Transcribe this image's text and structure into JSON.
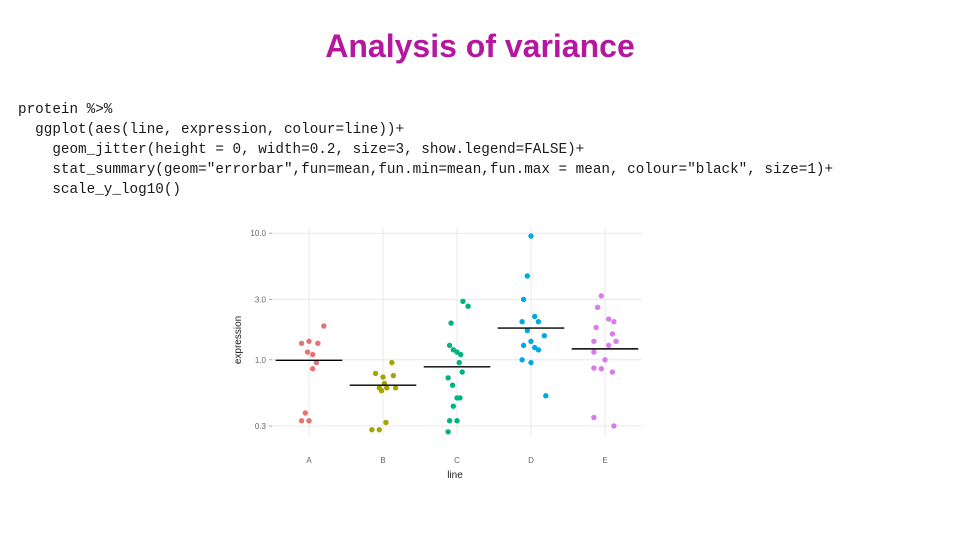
{
  "slide": {
    "title": "Analysis of variance"
  },
  "code": {
    "lines": [
      "protein %>%",
      "  ggplot(aes(line, expression, colour=line))+",
      "    geom_jitter(height = 0, width=0.2, size=3, show.legend=FALSE)+",
      "    stat_summary(geom=\"errorbar\",fun=mean,fun.min=mean,fun.max = mean, colour=\"black\", size=1)+",
      "    scale_y_log10()"
    ]
  },
  "chart_data": {
    "type": "scatter",
    "xlabel": "line",
    "ylabel": "expression",
    "y_scale": "log10",
    "ylim": [
      0.25,
      11
    ],
    "yticks": [
      10.0,
      3.0,
      1.0,
      0.3
    ],
    "ytick_labels": [
      "10.0",
      "3.0",
      "1.0",
      "0.3"
    ],
    "categories": [
      "A",
      "B",
      "C",
      "D",
      "E"
    ],
    "grid": true,
    "legend": "none",
    "colors": {
      "A": "#e57373",
      "B": "#a3a500",
      "C": "#00b383",
      "D": "#00a9e0",
      "E": "#d77ce8",
      "mean_bar": "#000000",
      "grid": "#e8e8e8"
    },
    "series": [
      {
        "category": "A",
        "points": [
          [
            -0.1,
            1.35
          ],
          [
            0.0,
            1.4
          ],
          [
            0.12,
            1.35
          ],
          [
            -0.02,
            1.15
          ],
          [
            0.05,
            1.1
          ],
          [
            0.1,
            0.95
          ],
          [
            0.05,
            0.85
          ],
          [
            0.2,
            1.85
          ],
          [
            -0.05,
            0.38
          ],
          [
            0.0,
            0.33
          ],
          [
            -0.1,
            0.33
          ]
        ],
        "mean": 0.99
      },
      {
        "category": "B",
        "points": [
          [
            -0.15,
            0.28
          ],
          [
            0.12,
            0.95
          ],
          [
            -0.1,
            0.78
          ],
          [
            0.0,
            0.73
          ],
          [
            0.14,
            0.75
          ],
          [
            0.02,
            0.65
          ],
          [
            -0.05,
            0.6
          ],
          [
            0.05,
            0.6
          ],
          [
            -0.02,
            0.57
          ],
          [
            0.17,
            0.6
          ],
          [
            0.04,
            0.32
          ],
          [
            -0.05,
            0.28
          ]
        ],
        "mean": 0.63
      },
      {
        "category": "C",
        "points": [
          [
            0.08,
            2.9
          ],
          [
            0.15,
            2.65
          ],
          [
            -0.08,
            1.95
          ],
          [
            -0.1,
            1.3
          ],
          [
            -0.05,
            1.2
          ],
          [
            0.0,
            1.15
          ],
          [
            0.05,
            1.1
          ],
          [
            0.03,
            0.95
          ],
          [
            0.07,
            0.8
          ],
          [
            -0.12,
            0.72
          ],
          [
            -0.06,
            0.63
          ],
          [
            0.0,
            0.5
          ],
          [
            0.04,
            0.5
          ],
          [
            -0.05,
            0.43
          ],
          [
            0.0,
            0.33
          ],
          [
            -0.1,
            0.33
          ],
          [
            -0.12,
            0.27
          ]
        ],
        "mean": 0.88
      },
      {
        "category": "D",
        "points": [
          [
            0.0,
            9.5
          ],
          [
            -0.05,
            4.6
          ],
          [
            -0.1,
            3.0
          ],
          [
            -0.12,
            2.0
          ],
          [
            0.05,
            2.2
          ],
          [
            0.1,
            2.0
          ],
          [
            0.18,
            1.55
          ],
          [
            -0.05,
            1.7
          ],
          [
            0.0,
            1.4
          ],
          [
            -0.1,
            1.3
          ],
          [
            0.05,
            1.25
          ],
          [
            0.1,
            1.2
          ],
          [
            -0.12,
            1.0
          ],
          [
            0.0,
            0.95
          ],
          [
            0.2,
            0.52
          ]
        ],
        "mean": 1.78
      },
      {
        "category": "E",
        "points": [
          [
            -0.05,
            3.2
          ],
          [
            -0.1,
            2.6
          ],
          [
            0.05,
            2.1
          ],
          [
            0.12,
            2.0
          ],
          [
            -0.12,
            1.8
          ],
          [
            0.1,
            1.6
          ],
          [
            0.15,
            1.4
          ],
          [
            -0.15,
            1.4
          ],
          [
            0.05,
            1.3
          ],
          [
            -0.15,
            1.15
          ],
          [
            0.0,
            1.0
          ],
          [
            -0.15,
            0.86
          ],
          [
            -0.05,
            0.85
          ],
          [
            0.1,
            0.8
          ],
          [
            -0.15,
            0.35
          ],
          [
            0.12,
            0.3
          ]
        ],
        "mean": 1.22
      }
    ]
  }
}
